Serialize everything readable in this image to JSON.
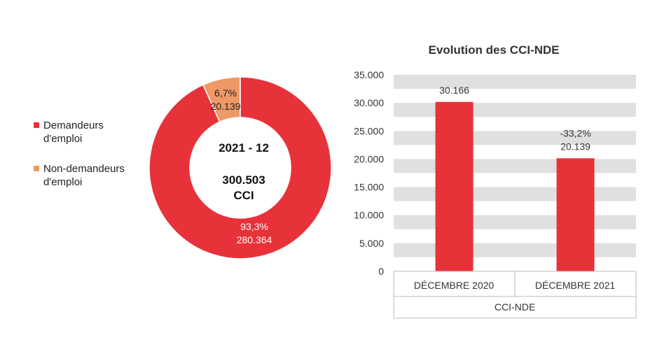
{
  "colors": {
    "accent_red": "#E8323A",
    "accent_orange": "#EE9966",
    "band": "#E0E0E0",
    "text": "#333333"
  },
  "chart_data": [
    {
      "type": "pie",
      "variant": "donut",
      "center_label": [
        "2021 - 12",
        "300.503",
        "CCI"
      ],
      "legend": [
        {
          "label": "Demandeurs d'emploi",
          "color": "#E8323A"
        },
        {
          "label": "Non-demandeurs d'emploi",
          "color": "#EE9966"
        }
      ],
      "slices": [
        {
          "category": "Demandeurs d'emploi",
          "value": 280364,
          "percent_label": "93,3%",
          "value_label": "280.364",
          "color": "#E8323A"
        },
        {
          "category": "Non-demandeurs d'emploi",
          "value": 20139,
          "percent_label": "6,7%",
          "value_label": "20.139",
          "color": "#EE9966"
        }
      ]
    },
    {
      "type": "bar",
      "title": "Evolution des CCI-NDE",
      "group_label": "CCI-NDE",
      "categories": [
        "DÉCEMBRE 2020",
        "DÉCEMBRE 2021"
      ],
      "values": [
        30166,
        20139
      ],
      "data_labels": [
        "30.166",
        "20.139"
      ],
      "annotations": [
        "",
        "-33,2%"
      ],
      "ylim": [
        0,
        35000
      ],
      "yticks": [
        0,
        5000,
        10000,
        15000,
        20000,
        25000,
        30000,
        35000
      ],
      "ytick_labels": [
        "0",
        "5.000",
        "10.000",
        "15.000",
        "20.000",
        "25.000",
        "30.000",
        "35.000"
      ],
      "grid": "alternating horizontal bands",
      "bar_color": "#E8323A"
    }
  ]
}
